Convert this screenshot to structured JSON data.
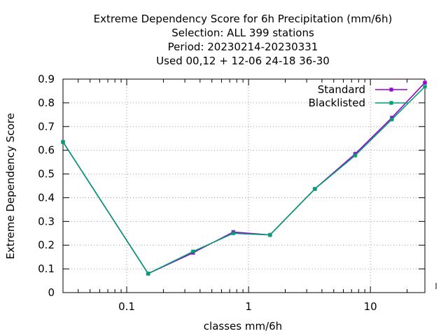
{
  "chart_data": {
    "type": "line",
    "title": [
      "Extreme Dependency Score  for 6h Precipitation (mm/6h)",
      "Selection: ALL    399 stations",
      "Period: 20230214-20230331",
      "Used  00,12  + 12-06 24-18 36-30"
    ],
    "xlabel": "classes mm/6h",
    "ylabel": "Extreme Dependency Score",
    "x_scale": "log",
    "xlim": [
      0.03,
      28
    ],
    "ylim": [
      0,
      0.9
    ],
    "x_ticks": [
      {
        "value": 0.1,
        "label": "0.1"
      },
      {
        "value": 1,
        "label": "1"
      },
      {
        "value": 10,
        "label": "10"
      }
    ],
    "y_ticks": [
      {
        "value": 0,
        "label": "0"
      },
      {
        "value": 0.1,
        "label": "0.1"
      },
      {
        "value": 0.2,
        "label": "0.2"
      },
      {
        "value": 0.3,
        "label": "0.3"
      },
      {
        "value": 0.4,
        "label": "0.4"
      },
      {
        "value": 0.5,
        "label": "0.5"
      },
      {
        "value": 0.6,
        "label": "0.6"
      },
      {
        "value": 0.7,
        "label": "0.7"
      },
      {
        "value": 0.8,
        "label": "0.8"
      },
      {
        "value": 0.9,
        "label": "0.9"
      }
    ],
    "grid": true,
    "legend_position": "top-right",
    "series": [
      {
        "name": "Standard",
        "color": "#9400d3",
        "x": [
          0.03,
          0.15,
          0.35,
          0.75,
          1.5,
          3.5,
          7.5,
          15,
          28
        ],
        "y": [
          0.635,
          0.08,
          0.168,
          0.255,
          0.243,
          0.437,
          0.585,
          0.737,
          0.885
        ]
      },
      {
        "name": "Blacklisted",
        "color": "#009e73",
        "x": [
          0.03,
          0.15,
          0.35,
          0.75,
          1.5,
          3.5,
          7.5,
          15,
          28
        ],
        "y": [
          0.635,
          0.08,
          0.173,
          0.25,
          0.243,
          0.437,
          0.578,
          0.73,
          0.868
        ]
      }
    ]
  }
}
